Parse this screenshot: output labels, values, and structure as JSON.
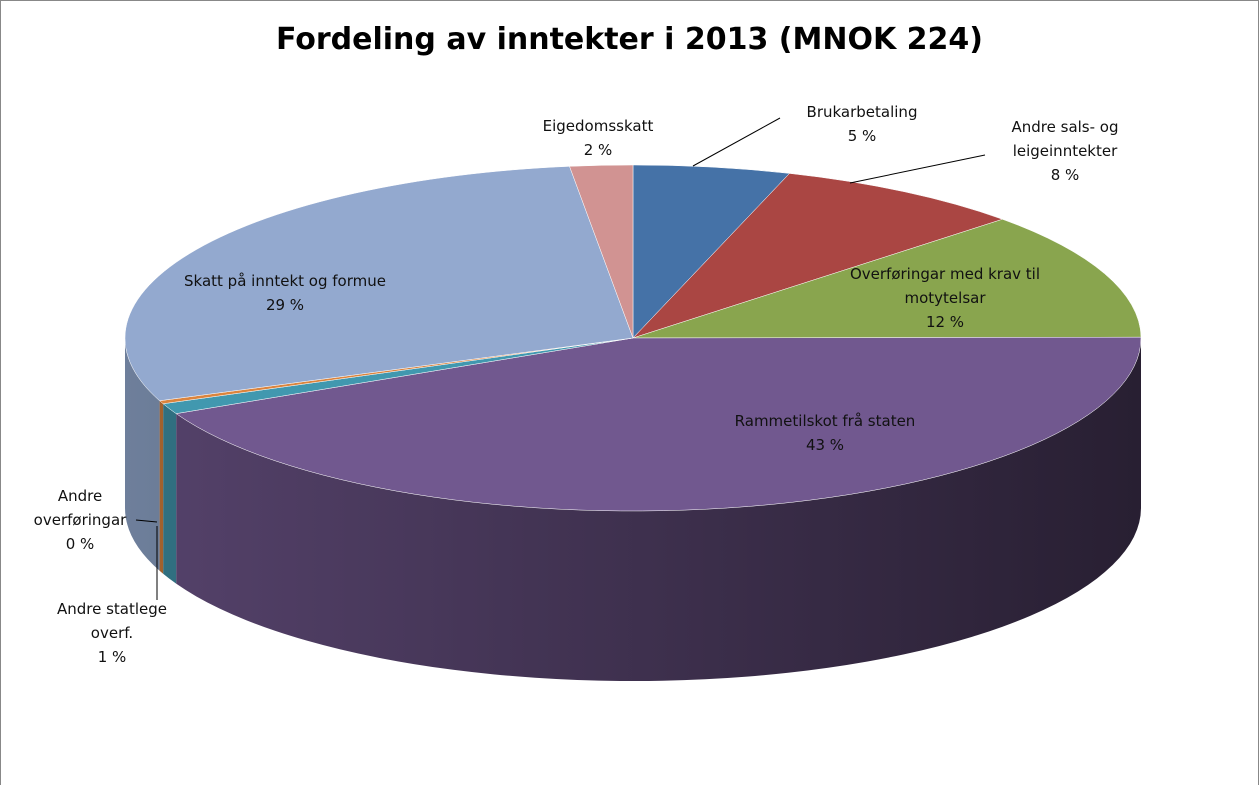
{
  "chart_data": {
    "type": "pie3d",
    "title": "Fordeling av inntekter i 2013 (MNOK 224)",
    "categories": [
      "Brukarbetaling",
      "Andre sals- og leigeinntekter",
      "Overføringar med krav til motytelsar",
      "Rammetilskot frå staten",
      "Andre statlege overf.",
      "Andre overføringar",
      "Skatt på inntekt og formue",
      "Eigedomsskatt"
    ],
    "values": [
      5,
      8,
      12,
      43,
      1,
      0.3,
      29,
      2
    ],
    "value_labels": [
      "5 %",
      "8 %",
      "12 %",
      "43 %",
      "1 %",
      "0 %",
      "29 %",
      "2 %"
    ],
    "colors": [
      "#4572a7",
      "#aa4643",
      "#89a54e",
      "#71588f",
      "#4198af",
      "#db843d",
      "#93a9cf",
      "#d19392"
    ]
  }
}
